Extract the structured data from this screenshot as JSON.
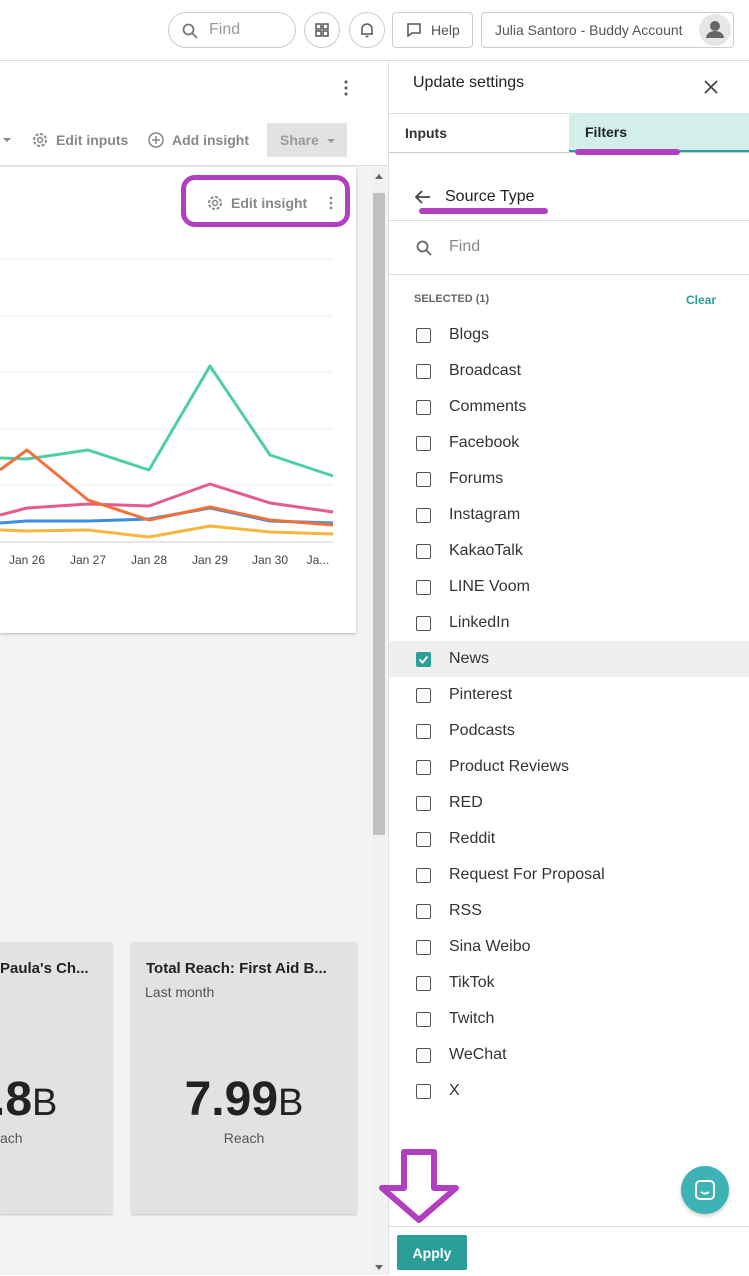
{
  "top_bar": {
    "search_placeholder": "Find",
    "help": "Help",
    "account": "Julia Santoro - Buddy Account"
  },
  "toolbar": {
    "edit_inputs": "Edit inputs",
    "add_insight": "Add insight",
    "share": "Share"
  },
  "insight_card": {
    "edit_insight": "Edit insight",
    "x_labels": [
      "Jan 26",
      "Jan 27",
      "Jan 28",
      "Jan 29",
      "Jan 30",
      "Ja..."
    ]
  },
  "metric_cards": [
    {
      "title": "Paula's Ch...",
      "value": ".8",
      "unit": "B",
      "caption": "ach"
    },
    {
      "title": "Total Reach: First Aid B...",
      "subtitle": "Last month",
      "value": "7.99",
      "unit": "B",
      "caption": "Reach"
    }
  ],
  "panel": {
    "title": "Update settings",
    "tabs": [
      "Inputs",
      "Filters"
    ],
    "filter_name": "Source Type",
    "search_placeholder": "Find",
    "selected_label": "SELECTED (1)",
    "clear": "Clear",
    "options": [
      {
        "label": "Blogs",
        "checked": false
      },
      {
        "label": "Broadcast",
        "checked": false
      },
      {
        "label": "Comments",
        "checked": false
      },
      {
        "label": "Facebook",
        "checked": false
      },
      {
        "label": "Forums",
        "checked": false
      },
      {
        "label": "Instagram",
        "checked": false
      },
      {
        "label": "KakaoTalk",
        "checked": false
      },
      {
        "label": "LINE Voom",
        "checked": false
      },
      {
        "label": "LinkedIn",
        "checked": false
      },
      {
        "label": "News",
        "checked": true
      },
      {
        "label": "Pinterest",
        "checked": false
      },
      {
        "label": "Podcasts",
        "checked": false
      },
      {
        "label": "Product Reviews",
        "checked": false
      },
      {
        "label": "RED",
        "checked": false
      },
      {
        "label": "Reddit",
        "checked": false
      },
      {
        "label": "Request For Proposal",
        "checked": false
      },
      {
        "label": "RSS",
        "checked": false
      },
      {
        "label": "Sina Weibo",
        "checked": false
      },
      {
        "label": "TikTok",
        "checked": false
      },
      {
        "label": "Twitch",
        "checked": false
      },
      {
        "label": "WeChat",
        "checked": false
      },
      {
        "label": "X",
        "checked": false
      }
    ],
    "apply": "Apply"
  }
}
